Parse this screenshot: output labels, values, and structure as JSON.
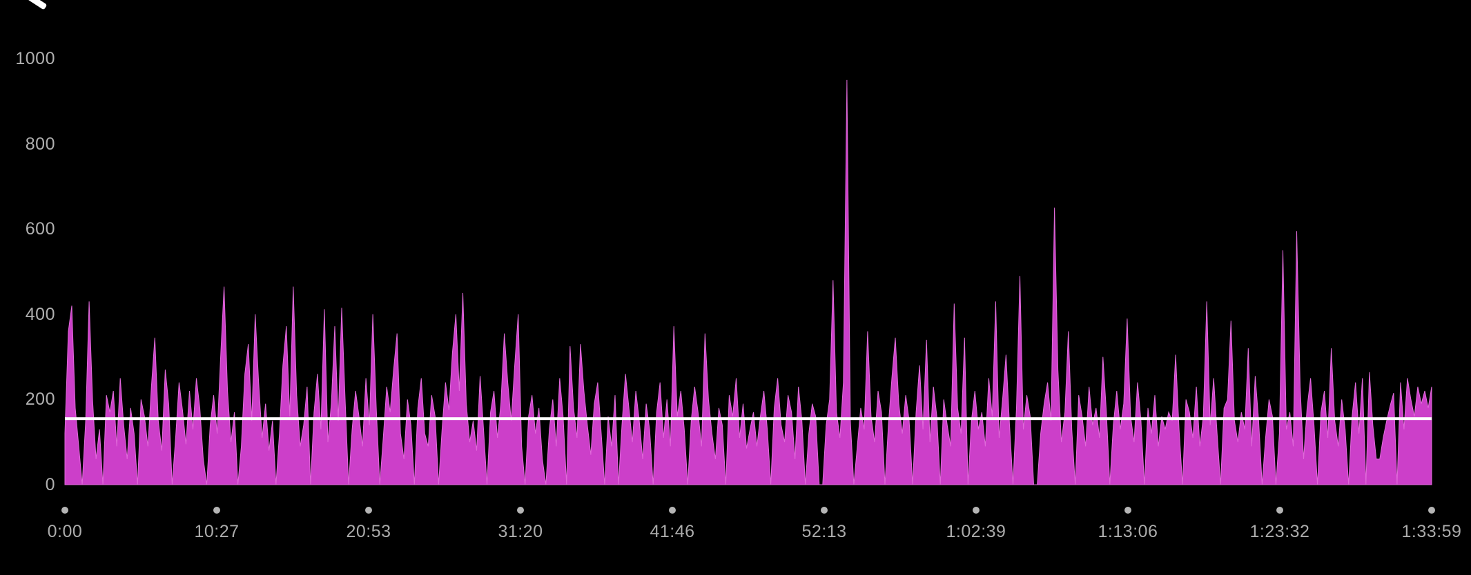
{
  "header": {
    "back_icon": "back-chevron (clipped at top edge of screenshot)"
  },
  "colors": {
    "background": "#000000",
    "series_fill": "#CC3FC9",
    "series_edge": "#E06ADA",
    "axis_text": "#AFAFAF",
    "tick_dot": "#B5B5B5",
    "average_line": "#FFFFFF"
  },
  "chart_data": {
    "type": "area",
    "title": "",
    "xlabel": "",
    "ylabel": "",
    "grid": "off",
    "legend": "none",
    "ylim": [
      0,
      1000
    ],
    "y_ticks": [
      0,
      200,
      400,
      600,
      800,
      1000
    ],
    "x_tick_labels": [
      "0:00",
      "10:27",
      "20:53",
      "31:20",
      "41:46",
      "52:13",
      "1:02:39",
      "1:13:06",
      "1:23:32",
      "1:33:59"
    ],
    "total_duration": "1:33:59",
    "average_line_value": 155,
    "max_spike_value": 950,
    "sample_interval_seconds": 14.28,
    "values": [
      120,
      360,
      420,
      180,
      90,
      0,
      150,
      430,
      200,
      60,
      130,
      0,
      210,
      170,
      220,
      90,
      250,
      140,
      60,
      180,
      120,
      0,
      200,
      160,
      90,
      230,
      345,
      150,
      80,
      270,
      190,
      0,
      110,
      240,
      175,
      95,
      220,
      130,
      250,
      180,
      60,
      0,
      140,
      210,
      120,
      300,
      465,
      220,
      100,
      170,
      0,
      90,
      260,
      330,
      150,
      400,
      240,
      110,
      190,
      80,
      150,
      0,
      120,
      280,
      372,
      160,
      465,
      210,
      90,
      140,
      230,
      0,
      170,
      260,
      130,
      412,
      100,
      190,
      372,
      150,
      415,
      200,
      0,
      130,
      220,
      160,
      90,
      250,
      140,
      400,
      180,
      0,
      110,
      230,
      170,
      270,
      355,
      120,
      60,
      200,
      140,
      0,
      180,
      250,
      120,
      90,
      210,
      160,
      0,
      130,
      240,
      175,
      310,
      400,
      220,
      450,
      190,
      100,
      150,
      80,
      255,
      130,
      0,
      170,
      220,
      110,
      190,
      355,
      240,
      150,
      280,
      400,
      90,
      0,
      160,
      210,
      120,
      180,
      60,
      0,
      130,
      200,
      90,
      250,
      160,
      0,
      325,
      180,
      110,
      330,
      220,
      140,
      70,
      190,
      240,
      120,
      0,
      160,
      90,
      210,
      0,
      140,
      260,
      180,
      100,
      220,
      150,
      60,
      190,
      130,
      0,
      170,
      240,
      110,
      200,
      90,
      372,
      160,
      220,
      130,
      0,
      150,
      230,
      170,
      90,
      355,
      200,
      120,
      60,
      180,
      140,
      0,
      210,
      160,
      250,
      110,
      190,
      85,
      130,
      170,
      90,
      160,
      220,
      130,
      0,
      180,
      250,
      140,
      100,
      210,
      170,
      60,
      230,
      150,
      0,
      120,
      190,
      160,
      0,
      0,
      140,
      200,
      480,
      170,
      110,
      240,
      950,
      150,
      0,
      90,
      180,
      130,
      360,
      160,
      100,
      220,
      170,
      0,
      140,
      250,
      345,
      190,
      120,
      210,
      150,
      0,
      170,
      280,
      130,
      340,
      100,
      230,
      160,
      0,
      200,
      140,
      90,
      425,
      180,
      120,
      345,
      0,
      150,
      220,
      130,
      170,
      90,
      250,
      160,
      430,
      110,
      200,
      305,
      140,
      0,
      180,
      490,
      130,
      210,
      160,
      0,
      0,
      120,
      190,
      240,
      150,
      650,
      270,
      100,
      170,
      360,
      130,
      0,
      210,
      160,
      90,
      230,
      140,
      180,
      110,
      300,
      170,
      0,
      140,
      220,
      130,
      190,
      390,
      160,
      100,
      240,
      150,
      0,
      180,
      120,
      210,
      90,
      160,
      130,
      170,
      150,
      305,
      130,
      0,
      200,
      170,
      110,
      230,
      90,
      160,
      430,
      140,
      250,
      120,
      0,
      180,
      200,
      385,
      150,
      100,
      170,
      130,
      320,
      90,
      255,
      150,
      0,
      110,
      200,
      160,
      0,
      120,
      550,
      130,
      170,
      90,
      595,
      230,
      60,
      180,
      250,
      140,
      0,
      170,
      220,
      110,
      320,
      150,
      90,
      200,
      130,
      0,
      160,
      240,
      120,
      250,
      0,
      264,
      140,
      60,
      60,
      110,
      150,
      185,
      215,
      0,
      240,
      130,
      250,
      200,
      160,
      230,
      190,
      220,
      180,
      230
    ]
  },
  "layout_note": "power-vs-time graph, white line = average"
}
